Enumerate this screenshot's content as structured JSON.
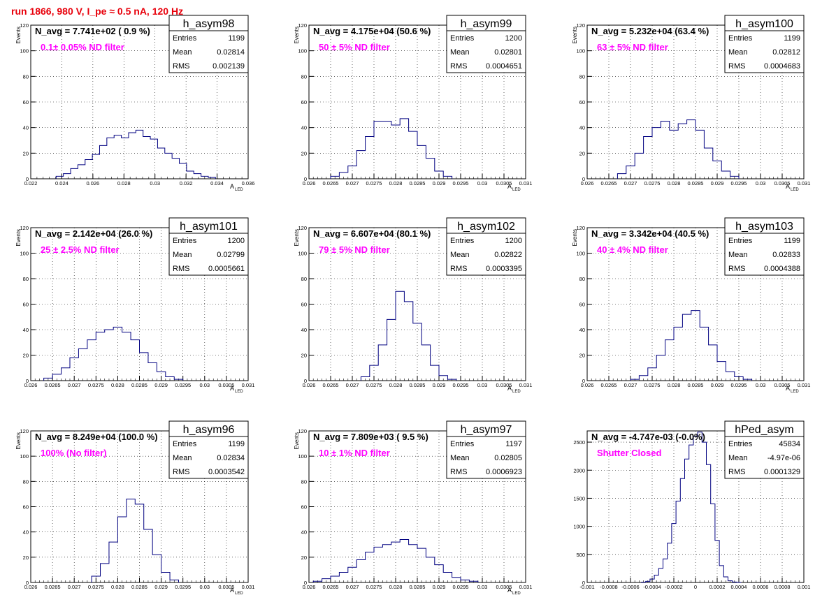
{
  "page": {
    "title": "run 1866,   980 V, I_pe ≈ 0.5 nA, 120 Hz"
  },
  "colors": {
    "histogram": "#000080",
    "annotation": "#ff00ff",
    "title": "#e8000b",
    "grid": "#000000"
  },
  "chart_data": [
    {
      "type": "bar",
      "name": "h_asym98",
      "navg": "N_avg = 7.741e+02 ( 0.9 %)",
      "annotation": "0.1± 0.05% ND filter",
      "stats": {
        "entries": "1199",
        "mean": "0.02814",
        "rms": "0.002139"
      },
      "xlabel": "A",
      "xlabel_sub": "LED",
      "ylabel": "Events",
      "xlim": [
        0.021,
        0.036
      ],
      "ylim": [
        0,
        120
      ],
      "xticks": [
        "0.022",
        "0.024",
        "0.026",
        "0.028",
        "0.03",
        "0.032",
        "0.034",
        "0.036"
      ],
      "yticks": [
        "0",
        "20",
        "40",
        "60",
        "80",
        "100",
        "120"
      ],
      "x": [
        0.023,
        0.0235,
        0.024,
        0.0245,
        0.025,
        0.0255,
        0.026,
        0.0265,
        0.027,
        0.0275,
        0.028,
        0.0285,
        0.029,
        0.0295,
        0.03,
        0.0305,
        0.031,
        0.0315,
        0.032,
        0.0325,
        0.033,
        0.0335
      ],
      "values": [
        2,
        4,
        8,
        11,
        15,
        19,
        26,
        32,
        34,
        32,
        36,
        38,
        33,
        31,
        24,
        20,
        16,
        12,
        6,
        4,
        2,
        1
      ]
    },
    {
      "type": "bar",
      "name": "h_asym99",
      "navg": "N_avg = 4.175e+04 (50.6 %)",
      "annotation": "50 ± 5% ND filter",
      "stats": {
        "entries": "1200",
        "mean": "0.02801",
        "rms": "0.0004651"
      },
      "xlabel": "A",
      "xlabel_sub": "LED",
      "ylabel": "Events",
      "xlim": [
        0.026,
        0.031
      ],
      "ylim": [
        0,
        120
      ],
      "xticks": [
        "0.026",
        "0.0265",
        "0.027",
        "0.0275",
        "0.028",
        "0.0285",
        "0.029",
        "0.0295",
        "0.03",
        "0.0305",
        "0.031"
      ],
      "yticks": [
        "0",
        "20",
        "40",
        "60",
        "80",
        "100",
        "120"
      ],
      "x": [
        0.0266,
        0.0268,
        0.027,
        0.0272,
        0.0274,
        0.0276,
        0.0278,
        0.028,
        0.0282,
        0.0284,
        0.0286,
        0.0288,
        0.029,
        0.0292
      ],
      "values": [
        2,
        5,
        10,
        22,
        33,
        45,
        45,
        42,
        47,
        37,
        26,
        16,
        6,
        2
      ]
    },
    {
      "type": "bar",
      "name": "h_asym100",
      "navg": "N_avg = 5.232e+04 (63.4 %)",
      "annotation": "63 ± 5% ND filter",
      "stats": {
        "entries": "1199",
        "mean": "0.02812",
        "rms": "0.0004683"
      },
      "xlabel": "A",
      "xlabel_sub": "LED",
      "ylabel": "Events",
      "xlim": [
        0.026,
        0.031
      ],
      "ylim": [
        0,
        120
      ],
      "xticks": [
        "0.026",
        "0.0265",
        "0.027",
        "0.0275",
        "0.028",
        "0.0285",
        "0.029",
        "0.0295",
        "0.03",
        "0.0305",
        "0.031"
      ],
      "yticks": [
        "0",
        "20",
        "40",
        "60",
        "80",
        "100",
        "120"
      ],
      "x": [
        0.0268,
        0.027,
        0.0272,
        0.0274,
        0.0276,
        0.0278,
        0.028,
        0.0282,
        0.0284,
        0.0286,
        0.0288,
        0.029,
        0.0292,
        0.0294
      ],
      "values": [
        4,
        10,
        20,
        33,
        40,
        45,
        38,
        43,
        46,
        38,
        24,
        14,
        6,
        2
      ]
    },
    {
      "type": "bar",
      "name": "h_asym101",
      "navg": "N_avg = 2.142e+04 (26.0 %)",
      "annotation": "25 ± 2.5% ND filter",
      "stats": {
        "entries": "1200",
        "mean": "0.02799",
        "rms": "0.0005661"
      },
      "xlabel": "A",
      "xlabel_sub": "LED",
      "ylabel": "Events",
      "xlim": [
        0.026,
        0.031
      ],
      "ylim": [
        0,
        120
      ],
      "xticks": [
        "0.026",
        "0.0265",
        "0.027",
        "0.0275",
        "0.028",
        "0.0285",
        "0.029",
        "0.0295",
        "0.03",
        "0.0305",
        "0.031"
      ],
      "yticks": [
        "0",
        "20",
        "40",
        "60",
        "80",
        "100",
        "120"
      ],
      "x": [
        0.0264,
        0.0266,
        0.0268,
        0.027,
        0.0272,
        0.0274,
        0.0276,
        0.0278,
        0.028,
        0.0282,
        0.0284,
        0.0286,
        0.0288,
        0.029,
        0.0292,
        0.0294
      ],
      "values": [
        2,
        5,
        10,
        18,
        25,
        32,
        38,
        40,
        42,
        38,
        32,
        22,
        14,
        7,
        3,
        1
      ]
    },
    {
      "type": "bar",
      "name": "h_asym102",
      "navg": "N_avg = 6.607e+04 (80.1 %)",
      "annotation": "79 ± 5% ND filter",
      "stats": {
        "entries": "1200",
        "mean": "0.02822",
        "rms": "0.0003395"
      },
      "xlabel": "A",
      "xlabel_sub": "LED",
      "ylabel": "Events",
      "xlim": [
        0.026,
        0.031
      ],
      "ylim": [
        0,
        120
      ],
      "xticks": [
        "0.026",
        "0.0265",
        "0.027",
        "0.0275",
        "0.028",
        "0.0285",
        "0.029",
        "0.0295",
        "0.03",
        "0.0305",
        "0.031"
      ],
      "yticks": [
        "0",
        "20",
        "40",
        "60",
        "80",
        "100",
        "120"
      ],
      "x": [
        0.0273,
        0.0275,
        0.0277,
        0.0279,
        0.0281,
        0.0283,
        0.0285,
        0.0287,
        0.0289,
        0.0291,
        0.0293
      ],
      "values": [
        3,
        12,
        28,
        48,
        70,
        62,
        45,
        28,
        12,
        4,
        1
      ]
    },
    {
      "type": "bar",
      "name": "h_asym103",
      "navg": "N_avg = 3.342e+04 (40.5 %)",
      "annotation": "40 ± 4% ND filter",
      "stats": {
        "entries": "1199",
        "mean": "0.02833",
        "rms": "0.0004388"
      },
      "xlabel": "A",
      "xlabel_sub": "LED",
      "ylabel": "Events",
      "xlim": [
        0.026,
        0.031
      ],
      "ylim": [
        0,
        120
      ],
      "xticks": [
        "0.026",
        "0.0265",
        "0.027",
        "0.0275",
        "0.028",
        "0.0285",
        "0.029",
        "0.0295",
        "0.03",
        "0.0305",
        "0.031"
      ],
      "yticks": [
        "0",
        "20",
        "40",
        "60",
        "80",
        "100",
        "120"
      ],
      "x": [
        0.0271,
        0.0273,
        0.0275,
        0.0277,
        0.0279,
        0.0281,
        0.0283,
        0.0285,
        0.0287,
        0.0289,
        0.0291,
        0.0293,
        0.0295,
        0.0297
      ],
      "values": [
        1,
        4,
        10,
        20,
        32,
        42,
        52,
        55,
        42,
        28,
        15,
        7,
        3,
        1
      ]
    },
    {
      "type": "bar",
      "name": "h_asym96",
      "navg": "N_avg = 8.249e+04 (100.0 %)",
      "annotation": "100% (No filter)",
      "stats": {
        "entries": "1199",
        "mean": "0.02834",
        "rms": "0.0003542"
      },
      "xlabel": "A",
      "xlabel_sub": "LED",
      "ylabel": "Events",
      "xlim": [
        0.026,
        0.031
      ],
      "ylim": [
        0,
        120
      ],
      "xticks": [
        "0.026",
        "0.0265",
        "0.027",
        "0.0275",
        "0.028",
        "0.0285",
        "0.029",
        "0.0295",
        "0.03",
        "0.0305",
        "0.031"
      ],
      "yticks": [
        "0",
        "20",
        "40",
        "60",
        "80",
        "100",
        "120"
      ],
      "x": [
        0.0275,
        0.0277,
        0.0279,
        0.0281,
        0.0283,
        0.0285,
        0.0287,
        0.0289,
        0.0291,
        0.0293
      ],
      "values": [
        5,
        15,
        32,
        52,
        66,
        62,
        42,
        22,
        8,
        2
      ]
    },
    {
      "type": "bar",
      "name": "h_asym97",
      "navg": "N_avg = 7.809e+03 ( 9.5 %)",
      "annotation": "10 ± 1% ND filter",
      "stats": {
        "entries": "1197",
        "mean": "0.02805",
        "rms": "0.0006923"
      },
      "xlabel": "A",
      "xlabel_sub": "LED",
      "ylabel": "Events",
      "xlim": [
        0.026,
        0.031
      ],
      "ylim": [
        0,
        120
      ],
      "xticks": [
        "0.026",
        "0.0265",
        "0.027",
        "0.0275",
        "0.028",
        "0.0285",
        "0.029",
        "0.0295",
        "0.03",
        "0.0305",
        "0.031"
      ],
      "yticks": [
        "0",
        "20",
        "40",
        "60",
        "80",
        "100",
        "120"
      ],
      "x": [
        0.0262,
        0.0264,
        0.0266,
        0.0268,
        0.027,
        0.0272,
        0.0274,
        0.0276,
        0.0278,
        0.028,
        0.0282,
        0.0284,
        0.0286,
        0.0288,
        0.029,
        0.0292,
        0.0294,
        0.0296,
        0.0298
      ],
      "values": [
        1,
        3,
        5,
        8,
        12,
        18,
        24,
        28,
        30,
        32,
        34,
        30,
        27,
        20,
        14,
        8,
        4,
        2,
        1
      ]
    },
    {
      "type": "bar",
      "name": "hPed_asym",
      "navg": "N_avg = -4.747e-03 (-0.0%)",
      "annotation": "Shutter Closed",
      "stats": {
        "entries": "45834",
        "mean": "-4.97e-06",
        "rms": "0.0001329"
      },
      "xlabel": "",
      "xlabel_sub": "",
      "ylabel": "",
      "xlim": [
        -0.001,
        0.001
      ],
      "ylim": [
        0,
        2700
      ],
      "xticks": [
        "-0.001",
        "-0.0008",
        "-0.0006",
        "-0.0004",
        "-0.0002",
        "0",
        "0.0002",
        "0.0004",
        "0.0006",
        "0.0008",
        "0.001"
      ],
      "yticks": [
        "0",
        "500",
        "1000",
        "1500",
        "2000",
        "2500"
      ],
      "x": [
        -0.00048,
        -0.00044,
        -0.0004,
        -0.00036,
        -0.00032,
        -0.00028,
        -0.00024,
        -0.0002,
        -0.00016,
        -0.00012,
        -8e-05,
        -4e-05,
        0.0,
        4e-05,
        8e-05,
        0.00012,
        0.00016,
        0.0002,
        0.00024,
        0.00028,
        0.00032,
        0.00036,
        0.0004
      ],
      "values": [
        5,
        20,
        60,
        130,
        250,
        420,
        700,
        1050,
        1450,
        1850,
        2200,
        2450,
        2600,
        2680,
        2500,
        2100,
        1400,
        750,
        300,
        100,
        30,
        8,
        2
      ]
    }
  ]
}
